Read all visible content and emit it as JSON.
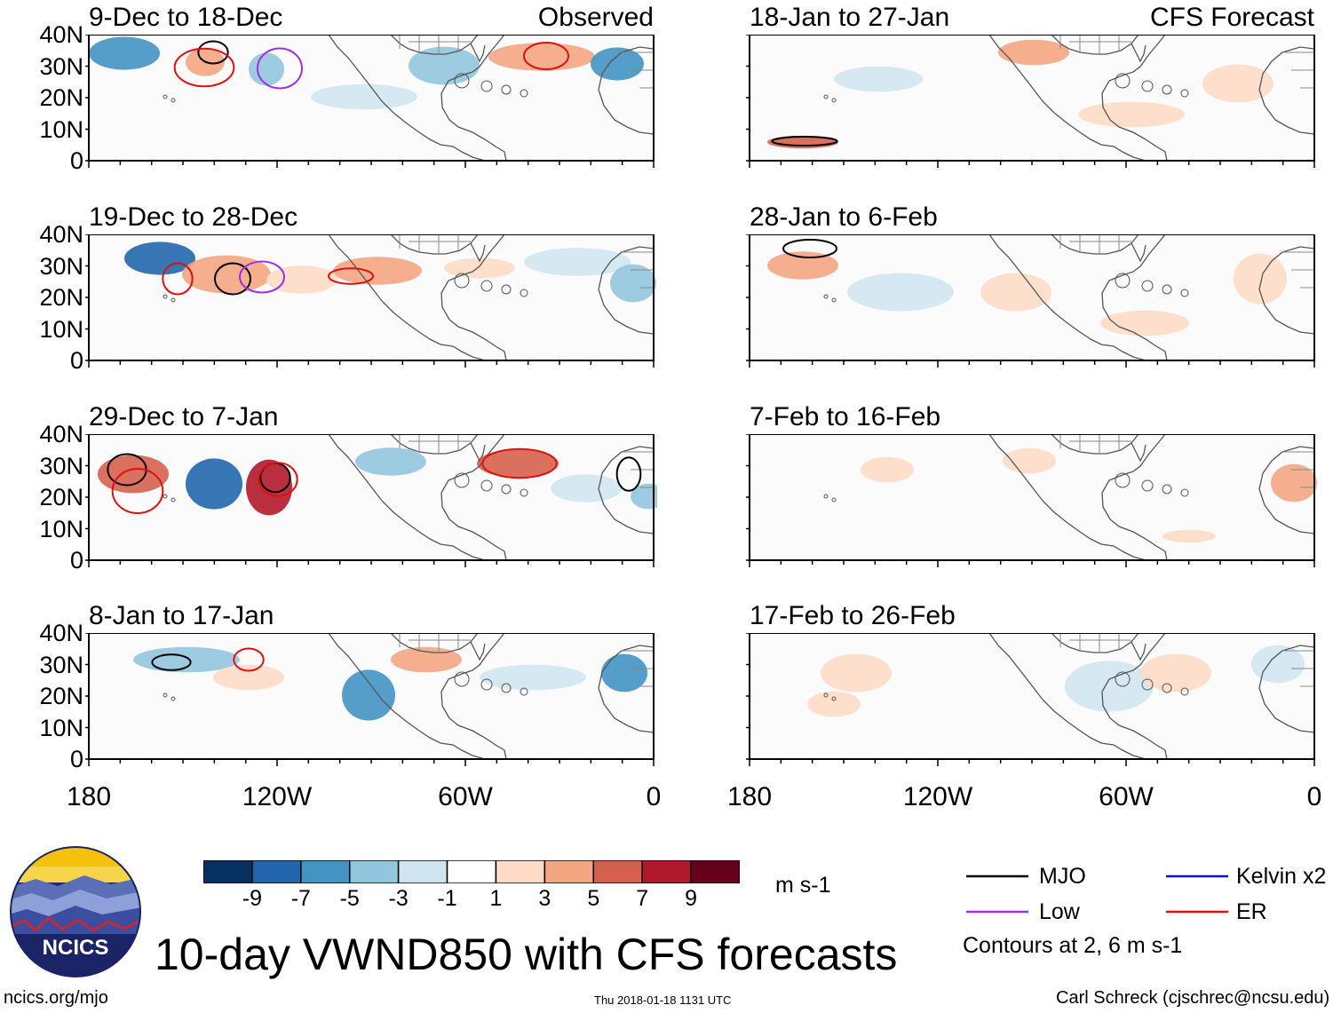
{
  "title": "10-day VWND850 with CFS forecasts",
  "logo": {
    "text": "NCICS"
  },
  "footer": {
    "url": "ncics.org/mjo",
    "timestamp": "Thu 2018-01-18 1131 UTC",
    "credit": "Carl Schreck (cjschrec@ncsu.edu)"
  },
  "column_labels": {
    "observed": "Observed",
    "forecast": "CFS Forecast"
  },
  "panels": {
    "observed": [
      "9-Dec to 18-Dec",
      "19-Dec to 28-Dec",
      "29-Dec to 7-Jan",
      "8-Jan to 17-Jan"
    ],
    "forecast": [
      "18-Jan to 27-Jan",
      "28-Jan to 6-Feb",
      "7-Feb to 16-Feb",
      "17-Feb to 26-Feb"
    ]
  },
  "axes": {
    "lat_ticks": [
      "40N",
      "30N",
      "20N",
      "10N",
      "0"
    ],
    "lon_ticks": [
      "180",
      "120W",
      "60W",
      "0"
    ]
  },
  "colorbar": {
    "ticks": [
      "-9",
      "-7",
      "-5",
      "-3",
      "-1",
      "1",
      "3",
      "5",
      "7",
      "9"
    ],
    "units": "m s-1",
    "colors": [
      "#053061",
      "#2166ac",
      "#4393c3",
      "#92c5de",
      "#d1e5f0",
      "#ffffff",
      "#fddbc7",
      "#f4a582",
      "#d6604d",
      "#b2182b",
      "#67001f"
    ]
  },
  "legend": {
    "items": [
      {
        "label": "MJO",
        "color": "#000000"
      },
      {
        "label": "Low",
        "color": "#a030e0"
      },
      {
        "label": "Kelvin x2",
        "color": "#1010d0"
      },
      {
        "label": "ER",
        "color": "#e01010"
      }
    ],
    "note": "Contours at 2, 6 m s-1"
  }
}
